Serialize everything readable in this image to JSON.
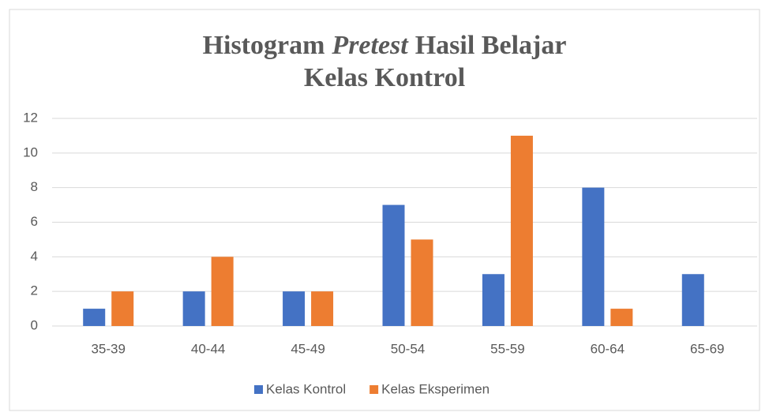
{
  "chart_data": {
    "type": "bar",
    "title": [
      "Histogram",
      "Pretest",
      "Hasil Belajar",
      "Kelas Kontrol"
    ],
    "categories": [
      "35-39",
      "40-44",
      "45-49",
      "50-54",
      "55-59",
      "60-64",
      "65-69"
    ],
    "series": [
      {
        "name": "Kelas Kontrol",
        "color": "#4472c4",
        "values": [
          1,
          2,
          2,
          7,
          3,
          8,
          3
        ]
      },
      {
        "name": "Kelas Eksperimen",
        "color": "#ed7d31",
        "values": [
          2,
          4,
          2,
          5,
          11,
          1,
          0
        ]
      }
    ],
    "ylim": [
      0,
      12
    ],
    "yticks": [
      0,
      2,
      4,
      6,
      8,
      10,
      12
    ],
    "grid": true,
    "legend": "bottom"
  }
}
